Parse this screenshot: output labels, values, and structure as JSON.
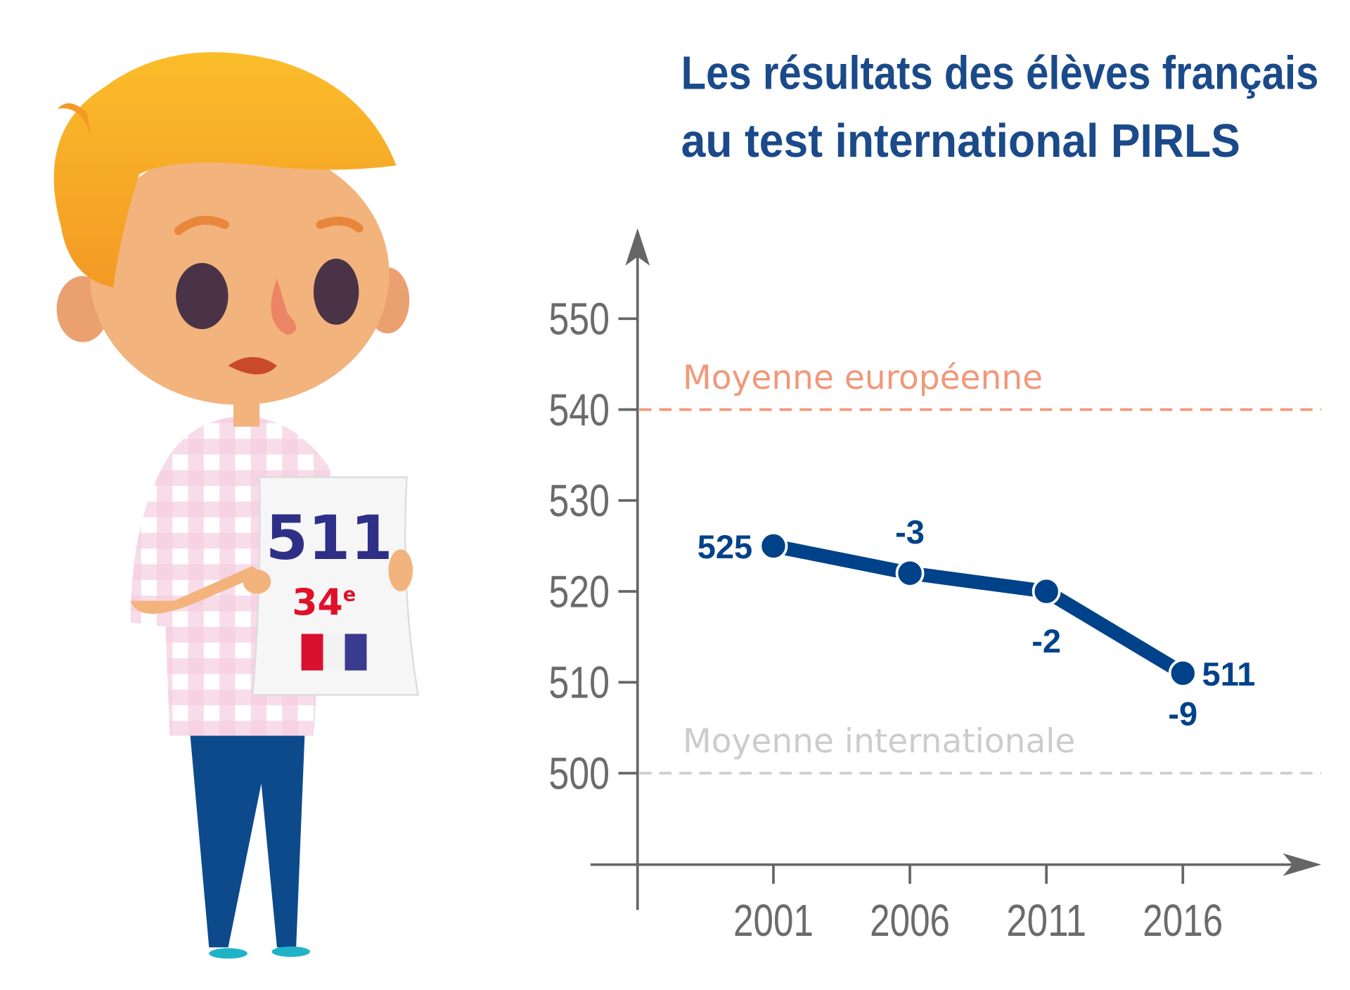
{
  "chart_data": {
    "type": "line",
    "title_lines": [
      "Les résultats des élèves français",
      "au test international PIRLS"
    ],
    "xlabel": "",
    "ylabel": "",
    "categories": [
      "2001",
      "2006",
      "2011",
      "2016"
    ],
    "series": [
      {
        "name": "France",
        "values": [
          525,
          522,
          520,
          511
        ]
      }
    ],
    "yticks": [
      "550",
      "540",
      "530",
      "520",
      "510",
      "500"
    ],
    "ylim": [
      490,
      555
    ],
    "point_labels": [
      "525",
      "-3",
      "-2",
      "-9"
    ],
    "end_label": "511",
    "reference_lines": [
      {
        "label": "Moyenne européenne",
        "value": 540,
        "color": "#f0997a"
      },
      {
        "label": "Moyenne internationale",
        "value": 500,
        "color": "#cccccc"
      }
    ],
    "line_color": "#004289",
    "grid": false,
    "legend": "none"
  },
  "illustration": {
    "score": "511",
    "rank": "34",
    "rank_suffix": "e"
  }
}
